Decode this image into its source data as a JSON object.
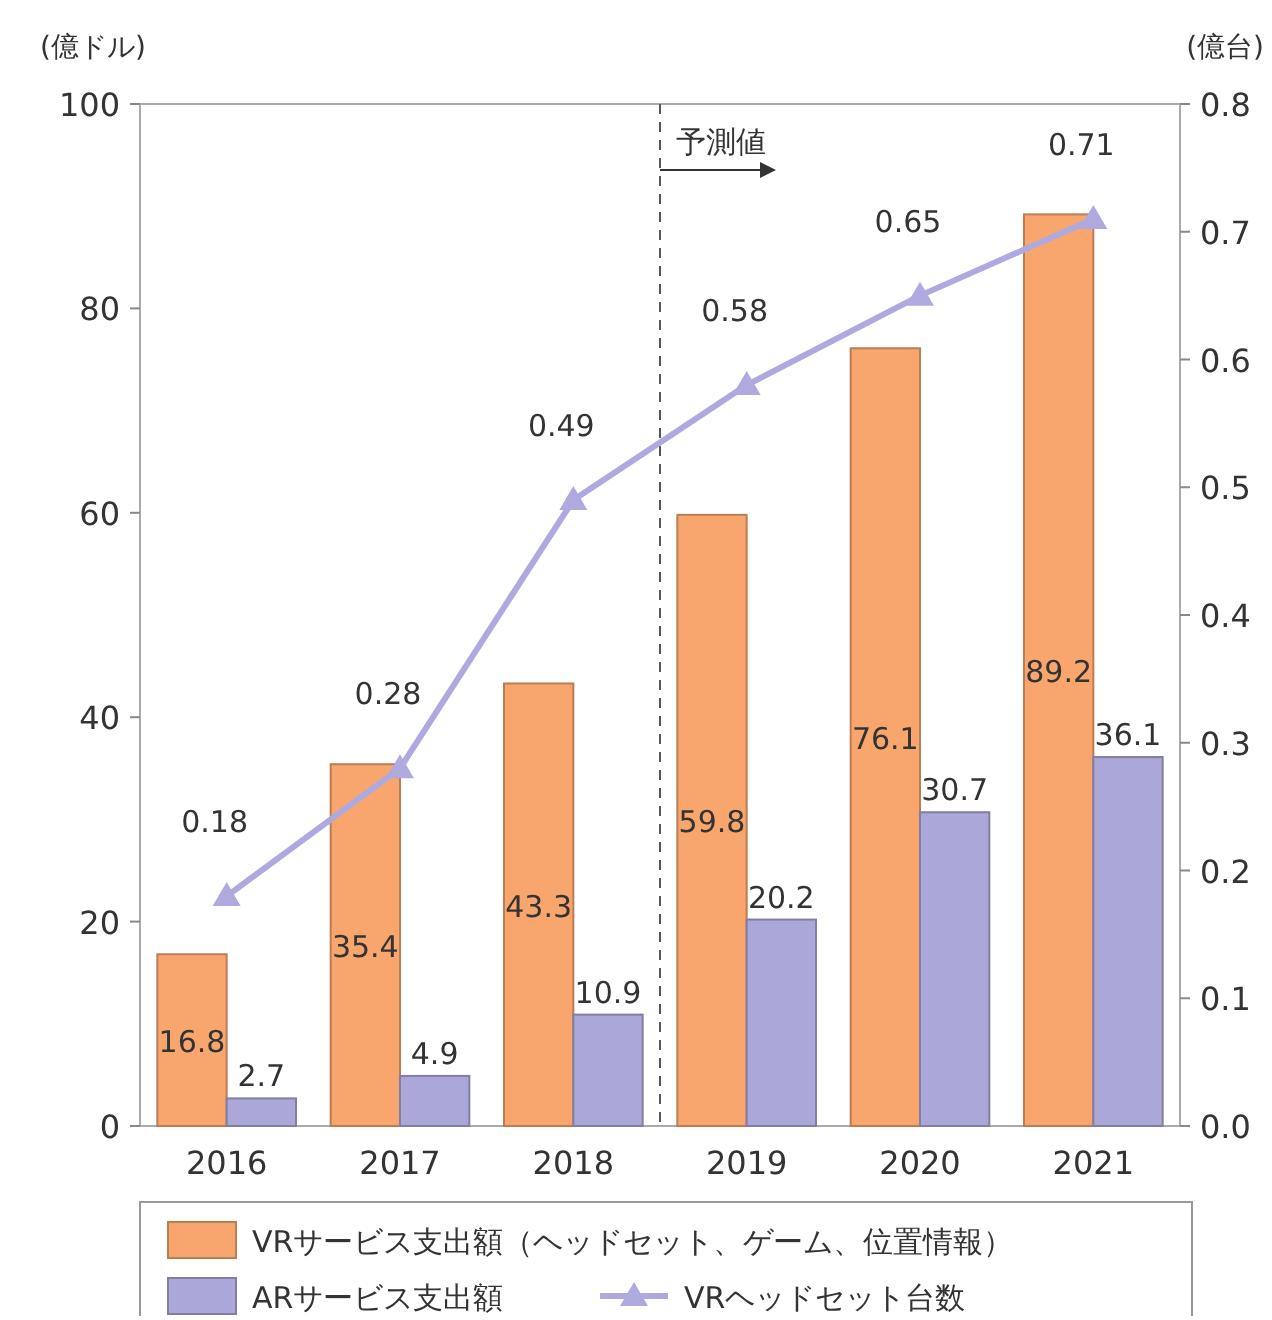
{
  "chart_data": {
    "type": "bar",
    "ylabel": "(億ドル)",
    "y2label": "(億台)",
    "categories": [
      "2016",
      "2017",
      "2018",
      "2019",
      "2020",
      "2021"
    ],
    "series": [
      {
        "name": "VRサービス支出額（ヘッドセット、ゲーム、位置情報）",
        "color": "#f9a66e",
        "values": [
          16.8,
          35.4,
          43.3,
          59.8,
          76.1,
          89.2
        ]
      },
      {
        "name": "ARサービス支出額",
        "color": "#aba7d8",
        "values": [
          2.7,
          4.9,
          10.9,
          20.2,
          30.7,
          36.1
        ]
      },
      {
        "name": "VRヘッドセット台数",
        "type": "line",
        "axis": "y2",
        "color": "#aeaae0",
        "marker": "triangle",
        "values": [
          0.18,
          0.28,
          0.49,
          0.58,
          0.65,
          0.71
        ]
      }
    ],
    "ylim": [
      0,
      100
    ],
    "yticks": [
      0,
      20,
      40,
      60,
      80,
      100
    ],
    "y2lim": [
      0,
      0.8
    ],
    "y2ticks": [
      {
        "value": 0,
        "label": "0.0"
      },
      0.1,
      0.2,
      0.3,
      0.4,
      0.5,
      0.6,
      0.7,
      0.8
    ],
    "annotations": [
      "予測値"
    ],
    "data_labels": true,
    "legend": "bottom",
    "grid": false
  }
}
